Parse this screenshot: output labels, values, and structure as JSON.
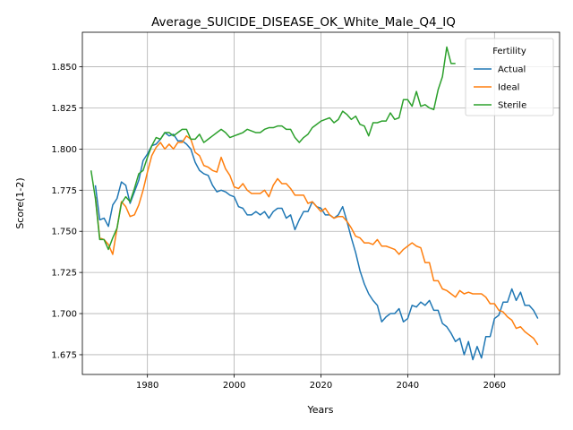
{
  "chart_data": {
    "type": "line",
    "title": "Average_SUICIDE_DISEASE_OK_White_Male_Q4_IQ",
    "xlabel": "Years",
    "ylabel": "Score(1-2)",
    "xlim": [
      1965,
      2075
    ],
    "ylim": [
      1.663,
      1.871
    ],
    "xticks": [
      1980,
      2000,
      2020,
      2040,
      2060
    ],
    "yticks": [
      1.675,
      1.7,
      1.725,
      1.75,
      1.775,
      1.8,
      1.825,
      1.85
    ],
    "grid": true,
    "legend": {
      "title": "Fertility",
      "position": "top-right"
    },
    "series": [
      {
        "name": "Actual",
        "color": "#1f77b4",
        "x": [
          1968,
          1969,
          1970,
          1971,
          1972,
          1973,
          1974,
          1975,
          1976,
          1977,
          1978,
          1979,
          1980,
          1981,
          1982,
          1983,
          1984,
          1985,
          1986,
          1987,
          1988,
          1989,
          1990,
          1991,
          1992,
          1993,
          1994,
          1995,
          1996,
          1997,
          1998,
          1999,
          2000,
          2001,
          2002,
          2003,
          2004,
          2005,
          2006,
          2007,
          2008,
          2009,
          2010,
          2011,
          2012,
          2013,
          2014,
          2015,
          2016,
          2017,
          2018,
          2019,
          2020,
          2021,
          2022,
          2023,
          2024,
          2025,
          2026,
          2027,
          2028,
          2029,
          2030,
          2031,
          2032,
          2033,
          2034,
          2035,
          2036,
          2037,
          2038,
          2039,
          2040,
          2041,
          2042,
          2043,
          2044,
          2045,
          2046,
          2047,
          2048,
          2049,
          2050,
          2051,
          2052,
          2053,
          2054,
          2055,
          2056,
          2057,
          2058,
          2059,
          2060,
          2061,
          2062,
          2063,
          2064,
          2065,
          2066,
          2067,
          2068,
          2069,
          2070
        ],
        "y": [
          1.778,
          1.757,
          1.758,
          1.753,
          1.766,
          1.77,
          1.78,
          1.778,
          1.767,
          1.774,
          1.781,
          1.793,
          1.797,
          1.802,
          1.803,
          1.806,
          1.81,
          1.808,
          1.809,
          1.805,
          1.805,
          1.803,
          1.8,
          1.792,
          1.787,
          1.785,
          1.784,
          1.778,
          1.774,
          1.775,
          1.774,
          1.772,
          1.771,
          1.765,
          1.764,
          1.76,
          1.76,
          1.762,
          1.76,
          1.762,
          1.758,
          1.762,
          1.764,
          1.764,
          1.758,
          1.76,
          1.751,
          1.757,
          1.762,
          1.762,
          1.768,
          1.765,
          1.764,
          1.76,
          1.76,
          1.758,
          1.76,
          1.765,
          1.756,
          1.746,
          1.737,
          1.726,
          1.718,
          1.712,
          1.708,
          1.705,
          1.695,
          1.698,
          1.7,
          1.7,
          1.703,
          1.695,
          1.697,
          1.705,
          1.704,
          1.707,
          1.705,
          1.708,
          1.702,
          1.702,
          1.694,
          1.692,
          1.688,
          1.683,
          1.685,
          1.675,
          1.683,
          1.672,
          1.68,
          1.673,
          1.686,
          1.686,
          1.697,
          1.699,
          1.707,
          1.707,
          1.715,
          1.708,
          1.713,
          1.705,
          1.705,
          1.702,
          1.697
        ]
      },
      {
        "name": "Ideal",
        "color": "#ff7f0e",
        "x": [
          1968,
          1969,
          1970,
          1971,
          1972,
          1973,
          1974,
          1975,
          1976,
          1977,
          1978,
          1979,
          1980,
          1981,
          1982,
          1983,
          1984,
          1985,
          1986,
          1987,
          1988,
          1989,
          1990,
          1991,
          1992,
          1993,
          1994,
          1995,
          1996,
          1997,
          1998,
          1999,
          2000,
          2001,
          2002,
          2003,
          2004,
          2005,
          2006,
          2007,
          2008,
          2009,
          2010,
          2011,
          2012,
          2013,
          2014,
          2015,
          2016,
          2017,
          2018,
          2019,
          2020,
          2021,
          2022,
          2023,
          2024,
          2025,
          2026,
          2027,
          2028,
          2029,
          2030,
          2031,
          2032,
          2033,
          2034,
          2035,
          2036,
          2037,
          2038,
          2039,
          2040,
          2041,
          2042,
          2043,
          2044,
          2045,
          2046,
          2047,
          2048,
          2049,
          2050,
          2051,
          2052,
          2053,
          2054,
          2055,
          2056,
          2057,
          2058,
          2059,
          2060,
          2061,
          2062,
          2063,
          2064,
          2065,
          2066,
          2067,
          2068,
          2069,
          2070
        ],
        "y": [
          1.771,
          1.746,
          1.745,
          1.742,
          1.736,
          1.752,
          1.768,
          1.765,
          1.759,
          1.76,
          1.766,
          1.775,
          1.786,
          1.796,
          1.801,
          1.804,
          1.8,
          1.803,
          1.8,
          1.804,
          1.804,
          1.808,
          1.806,
          1.798,
          1.796,
          1.79,
          1.789,
          1.787,
          1.786,
          1.795,
          1.788,
          1.784,
          1.777,
          1.776,
          1.779,
          1.775,
          1.773,
          1.773,
          1.773,
          1.775,
          1.771,
          1.778,
          1.782,
          1.779,
          1.779,
          1.776,
          1.772,
          1.772,
          1.772,
          1.767,
          1.768,
          1.765,
          1.762,
          1.764,
          1.76,
          1.758,
          1.759,
          1.759,
          1.756,
          1.752,
          1.747,
          1.746,
          1.743,
          1.743,
          1.742,
          1.745,
          1.741,
          1.741,
          1.74,
          1.739,
          1.736,
          1.739,
          1.741,
          1.743,
          1.741,
          1.74,
          1.731,
          1.731,
          1.72,
          1.72,
          1.715,
          1.714,
          1.712,
          1.71,
          1.714,
          1.712,
          1.713,
          1.712,
          1.712,
          1.712,
          1.71,
          1.706,
          1.706,
          1.702,
          1.701,
          1.698,
          1.696,
          1.691,
          1.692,
          1.689,
          1.687,
          1.685,
          1.681
        ]
      },
      {
        "name": "Sterile",
        "color": "#2ca02c",
        "x": [
          1967,
          1968,
          1969,
          1970,
          1971,
          1972,
          1973,
          1974,
          1975,
          1976,
          1977,
          1978,
          1979,
          1980,
          1981,
          1982,
          1983,
          1984,
          1985,
          1986,
          1987,
          1988,
          1989,
          1990,
          1991,
          1992,
          1993,
          1994,
          1995,
          1996,
          1997,
          1998,
          1999,
          2000,
          2001,
          2002,
          2003,
          2004,
          2005,
          2006,
          2007,
          2008,
          2009,
          2010,
          2011,
          2012,
          2013,
          2014,
          2015,
          2016,
          2017,
          2018,
          2019,
          2020,
          2021,
          2022,
          2023,
          2024,
          2025,
          2026,
          2027,
          2028,
          2029,
          2030,
          2031,
          2032,
          2033,
          2034,
          2035,
          2036,
          2037,
          2038,
          2039,
          2040,
          2041,
          2042,
          2043,
          2044,
          2045,
          2046,
          2047,
          2048,
          2049,
          2050,
          2051
        ],
        "y": [
          1.787,
          1.77,
          1.745,
          1.745,
          1.739,
          1.746,
          1.752,
          1.767,
          1.771,
          1.768,
          1.776,
          1.785,
          1.787,
          1.795,
          1.802,
          1.807,
          1.806,
          1.81,
          1.81,
          1.808,
          1.81,
          1.812,
          1.812,
          1.806,
          1.806,
          1.809,
          1.804,
          1.806,
          1.808,
          1.81,
          1.812,
          1.81,
          1.807,
          1.808,
          1.809,
          1.81,
          1.812,
          1.811,
          1.81,
          1.81,
          1.812,
          1.813,
          1.813,
          1.814,
          1.814,
          1.812,
          1.812,
          1.807,
          1.804,
          1.807,
          1.809,
          1.813,
          1.815,
          1.817,
          1.818,
          1.819,
          1.816,
          1.818,
          1.823,
          1.821,
          1.818,
          1.82,
          1.815,
          1.814,
          1.808,
          1.816,
          1.816,
          1.817,
          1.817,
          1.822,
          1.818,
          1.819,
          1.83,
          1.83,
          1.826,
          1.835,
          1.826,
          1.827,
          1.825,
          1.824,
          1.836,
          1.844,
          1.862,
          1.852,
          1.852
        ]
      }
    ]
  }
}
